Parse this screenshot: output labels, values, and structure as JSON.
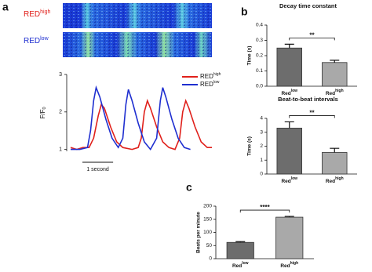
{
  "chart_data": [
    {
      "type": "line",
      "panel": "a",
      "image_labels": [
        {
          "text": "RED",
          "sup": "high",
          "color": "#e0201b"
        },
        {
          "text": "RED",
          "sup": "low",
          "color": "#1f2fd0"
        }
      ],
      "ylabel": "F/F",
      "ylabel_sub": "0",
      "xlim": [
        0,
        4.6
      ],
      "ylim": [
        0.95,
        3
      ],
      "yticks": [
        1,
        2,
        3
      ],
      "scale_bar": {
        "length": 1,
        "label": "1 second"
      },
      "series": [
        {
          "name": "RED",
          "name_sup": "high",
          "color": "#e0201b",
          "x": [
            0,
            0.2,
            0.4,
            0.6,
            0.75,
            0.9,
            1.0,
            1.1,
            1.3,
            1.5,
            1.7,
            2.0,
            2.2,
            2.3,
            2.4,
            2.5,
            2.6,
            2.8,
            3.0,
            3.2,
            3.4,
            3.55,
            3.65,
            3.75,
            3.85,
            4.05,
            4.25,
            4.45,
            4.6
          ],
          "values": [
            1.05,
            1.0,
            1.05,
            1.05,
            1.3,
            1.9,
            2.2,
            2.1,
            1.6,
            1.2,
            1.05,
            1.0,
            1.05,
            1.3,
            2.0,
            2.3,
            2.1,
            1.6,
            1.2,
            1.05,
            1.0,
            1.3,
            2.0,
            2.3,
            2.1,
            1.6,
            1.2,
            1.05,
            1.05
          ]
        },
        {
          "name": "RED",
          "name_sup": "low",
          "color": "#1f2fd0",
          "x": [
            0,
            0.3,
            0.55,
            0.65,
            0.75,
            0.83,
            0.95,
            1.15,
            1.35,
            1.55,
            1.7,
            1.8,
            1.88,
            2.0,
            2.2,
            2.4,
            2.6,
            2.8,
            2.92,
            3.0,
            3.1,
            3.3,
            3.5,
            3.7,
            3.9
          ],
          "values": [
            1.0,
            1.0,
            1.05,
            1.5,
            2.3,
            2.65,
            2.4,
            1.8,
            1.3,
            1.05,
            1.3,
            2.2,
            2.6,
            2.3,
            1.7,
            1.2,
            1.0,
            1.3,
            2.3,
            2.65,
            2.4,
            1.8,
            1.3,
            1.05,
            1.0
          ]
        }
      ]
    },
    {
      "type": "bar",
      "panel": "b",
      "title": "Decay time constant",
      "ylabel": "Time (s)",
      "categories": [
        "Red",
        "Red"
      ],
      "category_sups": [
        "low",
        "high"
      ],
      "values": [
        0.25,
        0.155
      ],
      "errors": [
        0.025,
        0.015
      ],
      "colors": [
        "#6d6d6d",
        "#a9a9a9"
      ],
      "ylim": [
        0,
        0.4
      ],
      "yticks": [
        {
          "value": 0,
          "label": "0.0"
        },
        0.1,
        0.2,
        0.3,
        0.4
      ],
      "significance": "**"
    },
    {
      "type": "bar",
      "title": "Beat-to-beat intervals",
      "ylabel": "Time (s)",
      "categories": [
        "Red",
        "Red"
      ],
      "category_sups": [
        "low",
        "high"
      ],
      "values": [
        3.3,
        1.55
      ],
      "errors": [
        0.45,
        0.3
      ],
      "colors": [
        "#6d6d6d",
        "#a9a9a9"
      ],
      "ylim": [
        0,
        4
      ],
      "yticks": [
        0,
        1,
        2,
        3,
        4
      ],
      "significance": "**"
    },
    {
      "type": "bar",
      "panel": "c",
      "ylabel": "Beats per minute",
      "categories": [
        "Red",
        "Red"
      ],
      "category_sups": [
        "low",
        "high"
      ],
      "values": [
        62,
        158
      ],
      "errors": [
        3,
        3
      ],
      "colors": [
        "#6d6d6d",
        "#a9a9a9"
      ],
      "ylim": [
        0,
        200
      ],
      "yticks": [
        0,
        50,
        100,
        150,
        200
      ],
      "significance": "****"
    }
  ]
}
